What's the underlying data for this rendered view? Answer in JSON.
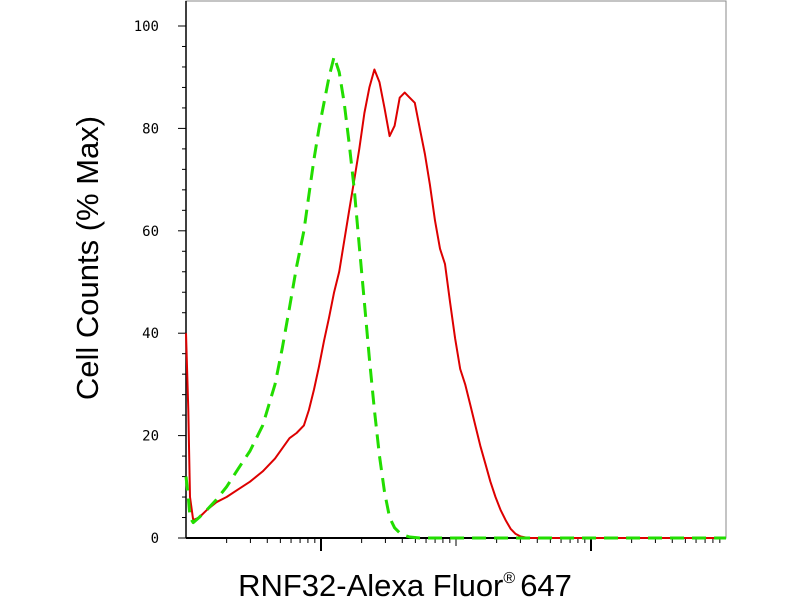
{
  "chart_data": {
    "type": "line",
    "title": "",
    "xlabel": "RNF32-Alexa Fluor",
    "xlabel_superscript": "®",
    "xlabel_suffix": "647",
    "ylabel": "Cell Counts (% Max)",
    "x_scale": "log",
    "xlim": [
      10,
      100000
    ],
    "ylim": [
      0,
      100
    ],
    "y_ticks": [
      0,
      20,
      40,
      60,
      80,
      100
    ],
    "y_tick_labels": [
      "0",
      "20",
      "40",
      "60",
      "80",
      "100"
    ],
    "x_major_ticks": [
      100,
      10000
    ],
    "grid": false,
    "legend": "none",
    "series": [
      {
        "color": "#dd0000",
        "line_style": "solid",
        "x": [
          10.0,
          10.4,
          10.7,
          11.3,
          12.5,
          14.3,
          16.8,
          20.0,
          24.3,
          29.8,
          37.0,
          45.6,
          51.6,
          58.4,
          66.0,
          74.7,
          81.4,
          88.7,
          96.6,
          105.3,
          114.7,
          125.0,
          136.3,
          148.5,
          161.8,
          176.4,
          192.2,
          209.5,
          228.3,
          248.8,
          271.2,
          295.5,
          322.1,
          351.0,
          382.5,
          416.9,
          454.3,
          495.1,
          539.6,
          588.0,
          640.9,
          698.4,
          761.2,
          829.5,
          904.0,
          985.2,
          1073.7,
          1170.1,
          1275.2,
          1389.8,
          1514.6,
          1650.6,
          1798.9,
          1960.4,
          2136.4,
          2328.3,
          2537.4,
          2765.2,
          3013.6,
          3284.2,
          3579.1,
          3900.6,
          4250.9,
          4632.6,
          5048.6,
          5502.0,
          5996.1,
          6534.6,
          7121.4,
          7761.0,
          8458.0,
          9217.6,
          10000.0,
          20000.0,
          50000.0,
          100000.0
        ],
        "y": [
          40.0,
          25.0,
          8.0,
          3.5,
          4.0,
          5.5,
          7.0,
          8.0,
          9.5,
          11.0,
          13.0,
          15.5,
          17.5,
          19.5,
          20.5,
          22.0,
          25.0,
          29.0,
          33.5,
          38.5,
          43.0,
          48.0,
          52.0,
          58.0,
          64.0,
          70.0,
          76.0,
          83.0,
          88.0,
          91.5,
          89.0,
          84.0,
          78.5,
          80.5,
          86.0,
          87.0,
          86.0,
          85.0,
          80.0,
          75.0,
          69.0,
          62.0,
          56.5,
          53.5,
          46.0,
          39.0,
          33.0,
          30.0,
          26.0,
          22.0,
          18.0,
          14.5,
          11.0,
          8.0,
          5.5,
          3.5,
          1.8,
          0.8,
          0.3,
          0.1,
          0.0,
          0.0,
          0.0,
          0.0,
          0.0,
          0.0,
          0.0,
          0.0,
          0.0,
          0.0,
          0.0,
          0.0,
          0.0,
          0.0,
          0.0,
          0.0
        ]
      },
      {
        "color": "#22dd00",
        "line_style": "dashed",
        "x": [
          10.0,
          10.4,
          10.7,
          11.3,
          12.5,
          14.3,
          16.8,
          20.0,
          24.3,
          29.8,
          37.0,
          45.6,
          51.6,
          58.4,
          66.0,
          74.7,
          81.4,
          88.7,
          96.6,
          105.3,
          114.7,
          125.0,
          136.3,
          148.5,
          161.8,
          176.4,
          192.2,
          209.5,
          228.3,
          248.8,
          271.2,
          295.5,
          322.1,
          351.0,
          382.5,
          416.9,
          454.3,
          495.1,
          539.6,
          588.0,
          640.9,
          698.4,
          761.2,
          829.5,
          904.0,
          985.2,
          1073.7,
          1170.1,
          1275.2,
          1389.8,
          1514.6,
          1650.6,
          1798.9,
          1960.4,
          2136.4,
          2328.3,
          2537.4,
          2765.2,
          3013.6,
          3284.2,
          3579.1,
          3900.6,
          4250.9,
          4632.6,
          5048.6,
          5502.0,
          5996.1,
          6534.6,
          7121.4,
          7761.0,
          8458.0,
          9217.6,
          10000.0,
          20000.0,
          50000.0,
          100000.0
        ],
        "y": [
          12.0,
          8.0,
          4.0,
          3.0,
          4.0,
          5.5,
          7.5,
          10.0,
          13.5,
          17.0,
          22.0,
          30.0,
          37.0,
          45.0,
          53.0,
          60.0,
          67.0,
          74.0,
          80.0,
          85.0,
          90.0,
          94.0,
          91.0,
          85.0,
          77.0,
          68.0,
          57.0,
          46.0,
          35.0,
          25.0,
          16.0,
          9.0,
          4.0,
          2.0,
          1.0,
          0.5,
          0.2,
          0.1,
          0.0,
          0.0,
          0.0,
          0.0,
          0.0,
          0.0,
          0.0,
          0.0,
          0.0,
          0.0,
          0.0,
          0.0,
          0.0,
          0.0,
          0.0,
          0.0,
          0.0,
          0.0,
          0.0,
          0.0,
          0.0,
          0.0,
          0.0,
          0.0,
          0.0,
          0.0,
          0.0,
          0.0,
          0.0,
          0.0,
          0.0,
          0.0,
          0.0,
          0.0,
          0.0,
          0.0,
          0.0,
          0.0
        ]
      }
    ]
  }
}
